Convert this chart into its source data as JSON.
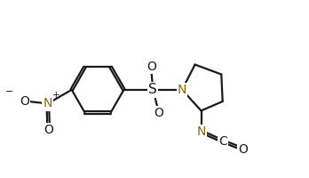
{
  "bg_color": "#ffffff",
  "bond_color": "#1a1a1a",
  "N_color": "#8B6914",
  "O_color": "#1a1a1a",
  "S_color": "#1a1a1a",
  "bond_lw": 1.6,
  "font_size": 10,
  "figsize": [
    3.48,
    2.0
  ],
  "dpi": 100,
  "xlim": [
    0,
    10
  ],
  "ylim": [
    0,
    5.75
  ]
}
